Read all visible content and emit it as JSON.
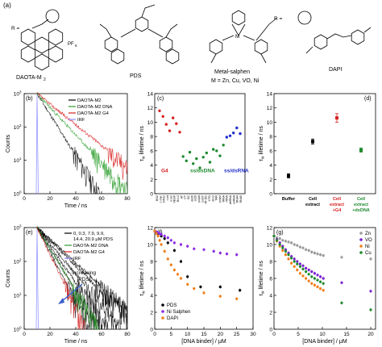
{
  "panel_labels": {
    "a": "(a)",
    "b": "(b)",
    "c": "(c)",
    "d": "(d)",
    "e": "(e)",
    "f": "(f)",
    "g": "(g)"
  },
  "structures": {
    "daota_name": "DAOTA-M",
    "daota_sub": "2",
    "daota_r": "R =",
    "daota_counterion": "PF",
    "daota_counterion_sub": "6",
    "pds_name": "PDS",
    "salphen_name": "Metal-salphen",
    "salphen_r": "R =",
    "salphen_metals": "M = Zn, Cu, VO, Ni",
    "dapi_name": "DAPI"
  },
  "chart_data": [
    {
      "panel": "b",
      "type": "line",
      "xlabel": "Time / ns",
      "ylabel": "Counts",
      "xlim": [
        0,
        80
      ],
      "ylim_log": [
        1,
        1000
      ],
      "yscale": "log",
      "xticks": [
        "0",
        "20",
        "40",
        "60",
        "80"
      ],
      "yticks": [
        "10",
        "10",
        "10",
        "10"
      ],
      "ytick_exp": [
        "0",
        "1",
        "2",
        "3"
      ],
      "legend": [
        "DAOTA-M2",
        "DAOTA-M2 DNA",
        "DAOTA-M2 G4",
        "IRF"
      ],
      "series_colors": [
        "#000000",
        "#2a9d2a",
        "#d62020",
        "#8a8aff"
      ],
      "decay_tau_ns": [
        7,
        10.5,
        14,
        0.4
      ]
    },
    {
      "panel": "c",
      "type": "scatter",
      "ylabel": "τ",
      "ylabel_sub": "w",
      "ylabel_rest": " lifetime / ns",
      "ylim": [
        0,
        14
      ],
      "yticks": [
        "0",
        "2",
        "4",
        "6",
        "8",
        "10",
        "12",
        "14"
      ],
      "groups": [
        {
          "name": "G4",
          "color": "#d62020",
          "values": [
            11.6,
            10.8,
            9.7,
            8.8,
            10.6,
            9.8,
            8.6
          ]
        },
        {
          "name": "ss/dsDNA",
          "color": "#1e8a2e",
          "values": [
            5.2,
            4.6,
            5.8,
            4.2,
            4.9,
            3.6,
            5.1,
            5.7,
            4.4,
            6.2,
            6.0,
            5.3,
            6.8
          ]
        },
        {
          "name": "ss/dsRNA",
          "color": "#2030c8",
          "values": [
            7.9,
            8.1,
            8.5,
            9.2,
            8.4
          ]
        }
      ],
      "x_labels": [
        "BG2",
        "c-myc",
        "HTelo",
        "c-kit",
        "k-ras",
        "VEGF",
        "Bcl-2",
        "AT",
        "CT",
        "GC",
        "ds26",
        "ss26",
        "polyA",
        "polyT",
        "AT-GC",
        "CTG",
        "ds12",
        "TAR",
        "polyU",
        "tRNA",
        "rRNA",
        "dsRNA",
        "ssRNA",
        "RNA4",
        "RNA5"
      ]
    },
    {
      "panel": "d",
      "type": "scatter",
      "ylabel": "τ",
      "ylabel_sub": "w",
      "ylabel_rest": " lifetime / ns",
      "ylim": [
        0,
        14
      ],
      "yticks": [
        "0",
        "2",
        "4",
        "6",
        "8",
        "10",
        "12",
        "14"
      ],
      "categories": [
        "Buffer",
        "Cell extract",
        "Cell extract +G4",
        "Cell extract +dsDNA"
      ],
      "cat_lines": [
        [
          "Buffer"
        ],
        [
          "Cell",
          "extract"
        ],
        [
          "Cell",
          "extract",
          "+G4"
        ],
        [
          "Cell",
          "extract",
          "+dsDNA"
        ]
      ],
      "cat_label_colors": [
        "#000000",
        "#000000",
        "#d62020",
        "#1e8a2e"
      ],
      "values": [
        2.5,
        7.3,
        10.6,
        6.1
      ],
      "errors": [
        0.3,
        0.35,
        0.6,
        0.3
      ],
      "colors": [
        "#000000",
        "#000000",
        "#d62020",
        "#1e8a2e"
      ]
    },
    {
      "panel": "e",
      "type": "line",
      "xlabel": "Time / ns",
      "ylabel": "Counts",
      "xlim": [
        0,
        80
      ],
      "ylim_log": [
        1,
        1000
      ],
      "yscale": "log",
      "xticks": [
        "0",
        "20",
        "40",
        "60",
        "80"
      ],
      "yticks": [
        "10",
        "10",
        "10",
        "10"
      ],
      "ytick_exp": [
        "0",
        "1",
        "2",
        "3"
      ],
      "legend": [
        "0, 0.3, 7.9, 9.9,",
        "14.4, 20.9 μM PDS",
        "DAOTA-M2 DNA",
        "DAOTA-M2 G4",
        "IRF"
      ],
      "annotation": [
        "Increasing",
        "[PDS]"
      ],
      "pds_tau_ns": [
        12.5,
        11.5,
        9.5,
        8.0,
        7.0,
        6.0
      ],
      "dna_tau_ns": 7,
      "g4_tau_ns": 5.5,
      "series_colors": [
        "#000000",
        "#2a9d2a",
        "#d62020",
        "#8a8aff"
      ]
    },
    {
      "panel": "f",
      "type": "scatter",
      "xlabel": "[DNA binder] / μM",
      "ylabel": "τ",
      "ylabel_sub": "w",
      "ylabel_rest": " lifetime / ns",
      "xlim": [
        0,
        30
      ],
      "ylim": [
        0,
        12
      ],
      "xticks": [
        "0",
        "5",
        "10",
        "15",
        "20",
        "25",
        "30"
      ],
      "yticks": [
        "0",
        "2",
        "4",
        "6",
        "8",
        "10",
        "12"
      ],
      "series": [
        {
          "name": "PDS",
          "color": "#000000",
          "x": [
            0,
            1,
            2,
            3,
            4,
            6,
            8,
            10,
            14,
            20,
            26
          ],
          "y": [
            11.6,
            11.3,
            11.0,
            10.7,
            10.2,
            9.3,
            8.0,
            6.2,
            5.0,
            5.0,
            4.6
          ]
        },
        {
          "name": "Ni Salphen",
          "color": "#8a2be2",
          "x": [
            0,
            0.5,
            1,
            1.5,
            2,
            3,
            4,
            5,
            6,
            8,
            10,
            12,
            15,
            18,
            20,
            22,
            25
          ],
          "y": [
            11.6,
            11.5,
            11.4,
            11.3,
            11.2,
            11.0,
            10.8,
            10.5,
            10.2,
            10.0,
            9.8,
            9.5,
            9.4,
            9.2,
            9.0,
            8.9,
            8.8
          ]
        },
        {
          "name": "DAPI",
          "color": "#f07f1a",
          "x": [
            0,
            0.5,
            1,
            1.5,
            2,
            3,
            4,
            5,
            6,
            7,
            8,
            10,
            12,
            15,
            20,
            25
          ],
          "y": [
            11.6,
            11.3,
            11.0,
            10.5,
            10.0,
            9.2,
            8.3,
            7.6,
            7.0,
            6.5,
            6.0,
            5.3,
            4.8,
            4.3,
            3.9,
            3.6
          ]
        }
      ]
    },
    {
      "panel": "g",
      "type": "scatter",
      "xlabel": "[DNA binder] / μM",
      "ylabel": "τ",
      "ylabel_sub": "w",
      "ylabel_rest": " lifetime / ns",
      "xlim": [
        0,
        21
      ],
      "ylim": [
        0,
        12
      ],
      "xticks": [
        "0",
        "5",
        "10",
        "15",
        "20"
      ],
      "yticks": [
        "0",
        "2",
        "4",
        "6",
        "8",
        "10",
        "12"
      ],
      "series": [
        {
          "name": "Zn",
          "color": "#9a9a9a",
          "x": [
            0,
            0.6,
            1.2,
            1.8,
            2.4,
            3.0,
            3.6,
            4.2,
            4.8,
            5.4,
            6.0,
            6.6,
            7.2,
            7.8,
            8.4,
            9.0,
            9.6,
            10.2,
            14,
            20
          ],
          "y": [
            11.0,
            10.8,
            10.7,
            10.5,
            10.4,
            10.3,
            10.2,
            10.0,
            9.9,
            9.7,
            9.6,
            9.4,
            9.3,
            9.1,
            9.0,
            8.9,
            8.8,
            8.7,
            8.5,
            8.3
          ]
        },
        {
          "name": "VO",
          "color": "#7a1fd0",
          "x": [
            0,
            0.6,
            1.2,
            1.8,
            2.4,
            3.0,
            3.6,
            4.2,
            4.8,
            5.4,
            6.0,
            6.6,
            7.2,
            7.8,
            8.4,
            9.0,
            9.6,
            10.2,
            14,
            20
          ],
          "y": [
            11.0,
            10.6,
            10.2,
            9.8,
            9.4,
            9.0,
            8.6,
            8.3,
            8.0,
            7.7,
            7.5,
            7.2,
            7.0,
            6.8,
            6.6,
            6.4,
            6.2,
            6.0,
            5.5,
            4.5
          ]
        },
        {
          "name": "Ni",
          "color": "#f07f1a",
          "x": [
            0,
            0.6,
            1.2,
            1.8,
            2.4,
            3.0,
            3.6,
            4.2,
            4.8,
            5.4,
            6.0,
            6.6,
            7.2,
            7.8,
            8.4,
            9.0,
            9.6,
            10.2
          ],
          "y": [
            11.0,
            10.4,
            9.8,
            9.3,
            8.8,
            8.3,
            7.8,
            7.4,
            7.0,
            6.6,
            6.3,
            6.0,
            5.7,
            5.4,
            5.2,
            5.0,
            4.8,
            4.6
          ]
        },
        {
          "name": "Cu",
          "color": "#1e8a2e",
          "x": [
            0,
            0.6,
            1.2,
            1.8,
            2.4,
            3.0,
            3.6,
            4.2,
            4.8,
            5.4,
            6.0,
            6.6,
            7.2,
            7.8,
            8.4,
            9.0,
            9.6,
            10.2,
            14,
            20
          ],
          "y": [
            11.0,
            10.5,
            10.0,
            9.6,
            9.2,
            8.8,
            8.4,
            8.0,
            7.7,
            7.4,
            7.1,
            6.8,
            6.5,
            6.2,
            6.0,
            5.8,
            5.6,
            5.4,
            3.1,
            2.3
          ]
        }
      ]
    }
  ]
}
